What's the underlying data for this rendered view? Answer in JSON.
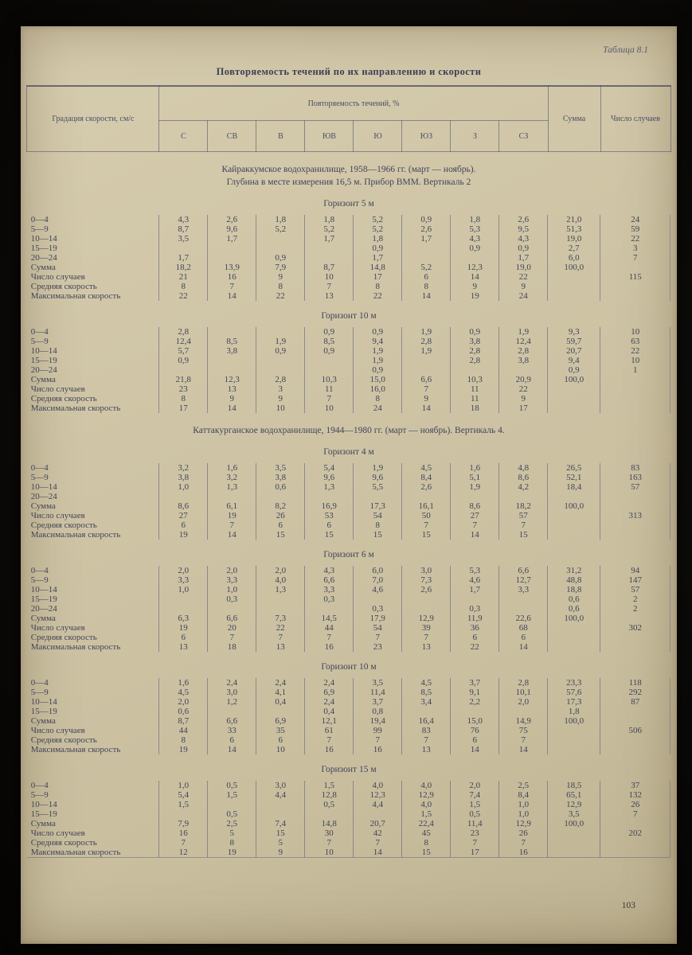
{
  "page_number": "103",
  "colors": {
    "page": "#cfc5a6",
    "ink": "#41445a",
    "rule": "#585a74",
    "backdrop": "#0b0907"
  },
  "header": {
    "table_label": "Таблица 8.1",
    "title": "Повторяемость течений по их направлению и скорости",
    "speed_col": "Градация скорости, см/с",
    "freq_col": "Повторяемость течений, %",
    "directions": [
      "С",
      "СВ",
      "В",
      "ЮВ",
      "Ю",
      "ЮЗ",
      "З",
      "СЗ"
    ],
    "sum_col": "Сумма",
    "cases_col": "Число случаев"
  },
  "sections": [
    {
      "heading_lines": [
        "Кайраккумское водохранилище, 1958—1966 гг.  (март — ноябрь).",
        "Глубина в месте измерения 16,5 м. Прибор ВММ. Вертикаль 2"
      ],
      "horizons": [
        {
          "title": "Горизонт 5 м",
          "rows": [
            {
              "label": "0—4",
              "values": [
                "4,3",
                "2,6",
                "1,8",
                "1,8",
                "5,2",
                "0,9",
                "1,8",
                "2,6",
                "21,0",
                "24"
              ]
            },
            {
              "label": "5—9",
              "values": [
                "8,7",
                "9,6",
                "5,2",
                "5,2",
                "5,2",
                "2,6",
                "5,3",
                "9,5",
                "51,3",
                "59"
              ]
            },
            {
              "label": "10—14",
              "values": [
                "3,5",
                "1,7",
                "",
                "1,7",
                "1,8",
                "1,7",
                "4,3",
                "4,3",
                "19,0",
                "22"
              ]
            },
            {
              "label": "15—19",
              "values": [
                "",
                "",
                "",
                "",
                "0,9",
                "",
                "0,9",
                "0,9",
                "2,7",
                "3"
              ]
            },
            {
              "label": "20—24",
              "values": [
                "1,7",
                "",
                "0,9",
                "",
                "1,7",
                "",
                "",
                "1,7",
                "6,0",
                "7"
              ]
            },
            {
              "label": "Сумма",
              "values": [
                "18,2",
                "13,9",
                "7,9",
                "8,7",
                "14,8",
                "5,2",
                "12,3",
                "19,0",
                "100,0",
                ""
              ]
            },
            {
              "label": "Число случаев",
              "values": [
                "21",
                "16",
                "9",
                "10",
                "17",
                "6",
                "14",
                "22",
                "",
                "115"
              ]
            },
            {
              "label": "Средняя скорость",
              "values": [
                "8",
                "7",
                "8",
                "7",
                "8",
                "8",
                "9",
                "9",
                "",
                ""
              ]
            },
            {
              "label": "Максимальная скорость",
              "values": [
                "22",
                "14",
                "22",
                "13",
                "22",
                "14",
                "19",
                "24",
                "",
                ""
              ]
            }
          ]
        },
        {
          "title": "Горизонт 10 м",
          "rows": [
            {
              "label": "0—4",
              "values": [
                "2,8",
                "",
                "",
                "0,9",
                "0,9",
                "1,9",
                "0,9",
                "1,9",
                "9,3",
                "10"
              ]
            },
            {
              "label": "5—9",
              "values": [
                "12,4",
                "8,5",
                "1,9",
                "8,5",
                "9,4",
                "2,8",
                "3,8",
                "12,4",
                "59,7",
                "63"
              ]
            },
            {
              "label": "10—14",
              "values": [
                "5,7",
                "3,8",
                "0,9",
                "0,9",
                "1,9",
                "1,9",
                "2,8",
                "2,8",
                "20,7",
                "22"
              ]
            },
            {
              "label": "15—19",
              "values": [
                "0,9",
                "",
                "",
                "",
                "1,9",
                "",
                "2,8",
                "3,8",
                "9,4",
                "10"
              ]
            },
            {
              "label": "20—24",
              "values": [
                "",
                "",
                "",
                "",
                "0,9",
                "",
                "",
                "",
                "0,9",
                "1"
              ]
            },
            {
              "label": "Сумма",
              "values": [
                "21,8",
                "12,3",
                "2,8",
                "10,3",
                "15,0",
                "6,6",
                "10,3",
                "20,9",
                "100,0",
                ""
              ]
            },
            {
              "label": "Число случаев",
              "values": [
                "23",
                "13",
                "3",
                "11",
                "16,0",
                "7",
                "11",
                "22",
                "",
                ""
              ]
            },
            {
              "label": "Средняя скорость",
              "values": [
                "8",
                "9",
                "9",
                "7",
                "8",
                "9",
                "11",
                "9",
                "",
                ""
              ]
            },
            {
              "label": "Максимальная скорость",
              "values": [
                "17",
                "14",
                "10",
                "10",
                "24",
                "14",
                "18",
                "17",
                "",
                ""
              ]
            }
          ]
        }
      ]
    },
    {
      "heading_lines": [
        "Каттакурганское водохранилище, 1944—1980 гг. (март — ноябрь). Вертикаль 4."
      ],
      "horizons": [
        {
          "title": "Горизонт 4 м",
          "rows": [
            {
              "label": "0—4",
              "values": [
                "3,2",
                "1,6",
                "3,5",
                "5,4",
                "1,9",
                "4,5",
                "1,6",
                "4,8",
                "26,5",
                "83"
              ]
            },
            {
              "label": "5—9",
              "values": [
                "3,8",
                "3,2",
                "3,8",
                "9,6",
                "9,6",
                "8,4",
                "5,1",
                "8,6",
                "52,1",
                "163"
              ]
            },
            {
              "label": "10—14",
              "values": [
                "1,0",
                "1,3",
                "0,6",
                "1,3",
                "5,5",
                "2,6",
                "1,9",
                "4,2",
                "18,4",
                "57"
              ]
            },
            {
              "label": "20—24",
              "values": [
                "",
                "",
                "",
                "",
                "",
                "",
                "",
                "",
                "",
                ""
              ]
            },
            {
              "label": "Сумма",
              "values": [
                "8,6",
                "6,1",
                "8,2",
                "16,9",
                "17,3",
                "16,1",
                "8,6",
                "18,2",
                "100,0",
                ""
              ]
            },
            {
              "label": "Число случаев",
              "values": [
                "27",
                "19",
                "26",
                "53",
                "54",
                "50",
                "27",
                "57",
                "",
                "313"
              ]
            },
            {
              "label": "Средняя скорость",
              "values": [
                "6",
                "7",
                "6",
                "6",
                "8",
                "7",
                "7",
                "7",
                "",
                ""
              ]
            },
            {
              "label": "Максимальная скорость",
              "values": [
                "19",
                "14",
                "15",
                "15",
                "15",
                "15",
                "14",
                "15",
                "",
                ""
              ]
            }
          ]
        },
        {
          "title": "Горизонт 6 м",
          "rows": [
            {
              "label": "0—4",
              "values": [
                "2,0",
                "2,0",
                "2,0",
                "4,3",
                "6,0",
                "3,0",
                "5,3",
                "6,6",
                "31,2",
                "94"
              ]
            },
            {
              "label": "5—9",
              "values": [
                "3,3",
                "3,3",
                "4,0",
                "6,6",
                "7,0",
                "7,3",
                "4,6",
                "12,7",
                "48,8",
                "147"
              ]
            },
            {
              "label": "10—14",
              "values": [
                "1,0",
                "1,0",
                "1,3",
                "3,3",
                "4,6",
                "2,6",
                "1,7",
                "3,3",
                "18,8",
                "57"
              ]
            },
            {
              "label": "15—19",
              "values": [
                "",
                "0,3",
                "",
                "0,3",
                "",
                "",
                "",
                "",
                "0,6",
                "2"
              ]
            },
            {
              "label": "20—24",
              "values": [
                "",
                "",
                "",
                "",
                "0,3",
                "",
                "0,3",
                "",
                "0,6",
                "2"
              ]
            },
            {
              "label": "Сумма",
              "values": [
                "6,3",
                "6,6",
                "7,3",
                "14,5",
                "17,9",
                "12,9",
                "11,9",
                "22,6",
                "100,0",
                ""
              ]
            },
            {
              "label": "Число случаев",
              "values": [
                "19",
                "20",
                "22",
                "44",
                "54",
                "39",
                "36",
                "68",
                "",
                "302"
              ]
            },
            {
              "label": "Средняя скорость",
              "values": [
                "6",
                "7",
                "7",
                "7",
                "7",
                "7",
                "6",
                "6",
                "",
                ""
              ]
            },
            {
              "label": "Максимальная скорость",
              "values": [
                "13",
                "18",
                "13",
                "16",
                "23",
                "13",
                "22",
                "14",
                "",
                ""
              ]
            }
          ]
        },
        {
          "title": "Горизонт 10 м",
          "rows": [
            {
              "label": "0—4",
              "values": [
                "1,6",
                "2,4",
                "2,4",
                "2,4",
                "3,5",
                "4,5",
                "3,7",
                "2,8",
                "23,3",
                "118"
              ]
            },
            {
              "label": "5—9",
              "values": [
                "4,5",
                "3,0",
                "4,1",
                "6,9",
                "11,4",
                "8,5",
                "9,1",
                "10,1",
                "57,6",
                "292"
              ]
            },
            {
              "label": "10—14",
              "values": [
                "2,0",
                "1,2",
                "0,4",
                "2,4",
                "3,7",
                "3,4",
                "2,2",
                "2,0",
                "17,3",
                "87"
              ]
            },
            {
              "label": "15—19",
              "values": [
                "0,6",
                "",
                "",
                "0,4",
                "0,8",
                "",
                "",
                "",
                "1,8",
                ""
              ]
            },
            {
              "label": "Сумма",
              "values": [
                "8,7",
                "6,6",
                "6,9",
                "12,1",
                "19,4",
                "16,4",
                "15,0",
                "14,9",
                "100,0",
                ""
              ]
            },
            {
              "label": "Число случаев",
              "values": [
                "44",
                "33",
                "35",
                "61",
                "99",
                "83",
                "76",
                "75",
                "",
                "506"
              ]
            },
            {
              "label": "Средняя скорость",
              "values": [
                "8",
                "6",
                "6",
                "7",
                "7",
                "7",
                "6",
                "7",
                "",
                ""
              ]
            },
            {
              "label": "Максимальная скорость",
              "values": [
                "19",
                "14",
                "10",
                "16",
                "16",
                "13",
                "14",
                "14",
                "",
                ""
              ]
            }
          ]
        },
        {
          "title": "Горизонт 15 м",
          "rows": [
            {
              "label": "0—4",
              "values": [
                "1,0",
                "0,5",
                "3,0",
                "1,5",
                "4,0",
                "4,0",
                "2,0",
                "2,5",
                "18,5",
                "37"
              ]
            },
            {
              "label": "5—9",
              "values": [
                "5,4",
                "1,5",
                "4,4",
                "12,8",
                "12,3",
                "12,9",
                "7,4",
                "8,4",
                "65,1",
                "132"
              ]
            },
            {
              "label": "10—14",
              "values": [
                "1,5",
                "",
                "",
                "0,5",
                "4,4",
                "4,0",
                "1,5",
                "1,0",
                "12,9",
                "26"
              ]
            },
            {
              "label": "15—19",
              "values": [
                "",
                "0,5",
                "",
                "",
                "",
                "1,5",
                "0,5",
                "1,0",
                "3,5",
                "7"
              ]
            },
            {
              "label": "Сумма",
              "values": [
                "7,9",
                "2,5",
                "7,4",
                "14,8",
                "20,7",
                "22,4",
                "11,4",
                "12,9",
                "100,0",
                ""
              ]
            },
            {
              "label": "Число случаев",
              "values": [
                "16",
                "5",
                "15",
                "30",
                "42",
                "45",
                "23",
                "26",
                "",
                "202"
              ]
            },
            {
              "label": "Средняя скорость",
              "values": [
                "7",
                "8",
                "5",
                "7",
                "7",
                "8",
                "7",
                "7",
                "",
                ""
              ]
            },
            {
              "label": "Максимальная скорость",
              "values": [
                "12",
                "19",
                "9",
                "10",
                "14",
                "15",
                "17",
                "16",
                "",
                ""
              ]
            }
          ]
        }
      ]
    }
  ]
}
